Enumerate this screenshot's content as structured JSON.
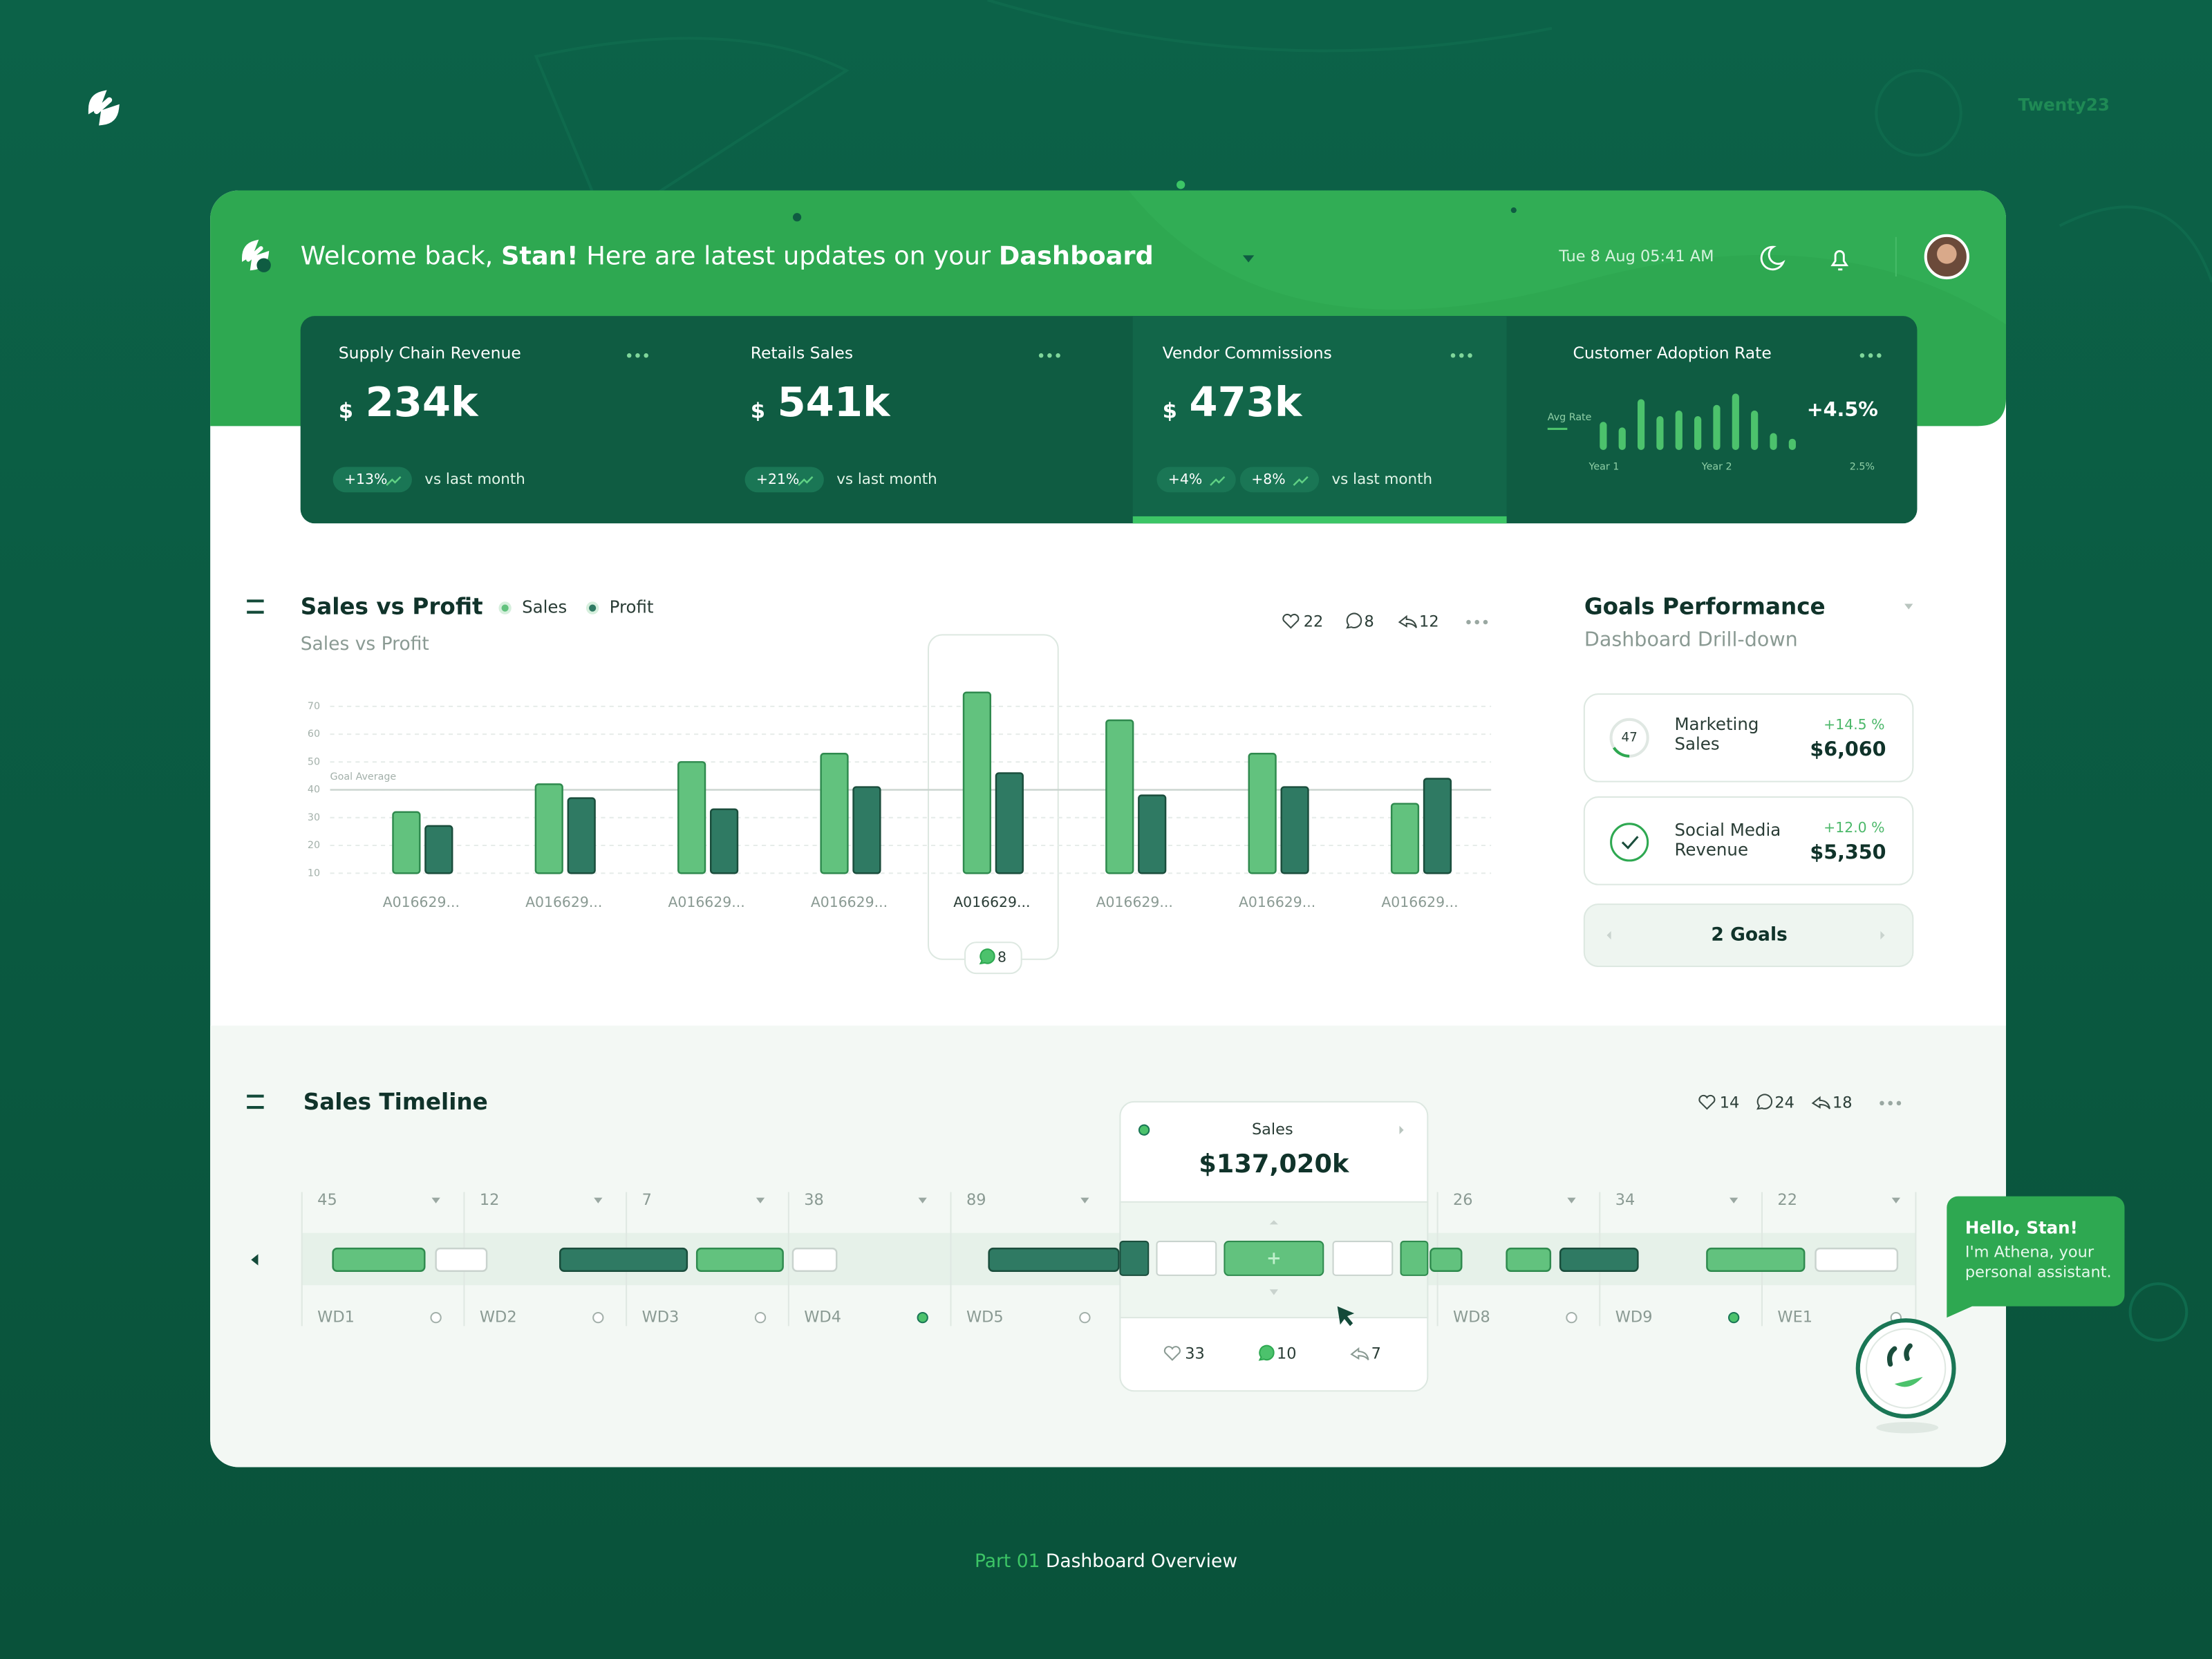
{
  "brand": "Twenty23",
  "header": {
    "welcome": [
      "Welcome back, ",
      "Stan!",
      " Here are latest updates on your ",
      "Dashboard"
    ],
    "datetime": "Tue 8 Aug 05:41 AM"
  },
  "kpis": [
    {
      "title": "Supply Chain Revenue",
      "currency": "$",
      "value": "234k",
      "badges": [
        "+13%"
      ],
      "note": "vs last month"
    },
    {
      "title": "Retails Sales",
      "currency": "$",
      "value": "541k",
      "badges": [
        "+21%"
      ],
      "note": "vs last month"
    },
    {
      "title": "Vendor Commissions",
      "currency": "$",
      "value": "473k",
      "badges": [
        "+4%",
        "+8%"
      ],
      "note": "vs last month"
    }
  ],
  "adoption": {
    "title": "Customer Adoption Rate",
    "avg_label": "Avg Rate",
    "change": "+4.5%",
    "x_labels": [
      "Year 1",
      "Year 2"
    ],
    "end_label": "2.5%",
    "ylim": [
      0,
      10
    ],
    "values": [
      5,
      4,
      9,
      6,
      7,
      6,
      8,
      10,
      7,
      3,
      2
    ],
    "color": "#4cc26c"
  },
  "sales_chart": {
    "type": "bar",
    "title": "Sales vs Profit",
    "subtitle": "Sales vs Profit",
    "likes": 22,
    "comments": 8,
    "shares": 12,
    "categories": [
      "A016629...",
      "A016629...",
      "A016629...",
      "A016629...",
      "A016629...",
      "A016629...",
      "A016629...",
      "A016629..."
    ],
    "series": [
      {
        "name": "Sales",
        "color": "#62c27e",
        "values": [
          32,
          42,
          50,
          53,
          75,
          65,
          53,
          35
        ]
      },
      {
        "name": "Profit",
        "color": "#2f7a63",
        "values": [
          27,
          37,
          33,
          41,
          46,
          38,
          41,
          44
        ]
      }
    ],
    "ylim": [
      10,
      80
    ],
    "yticks": [
      10,
      20,
      30,
      40,
      50,
      60,
      70
    ],
    "goal_label": "Goal Average",
    "goal": 40,
    "highlight": 4,
    "highlight_comments": 8,
    "grid": true
  },
  "goals": {
    "title": "Goals Performance",
    "subtitle": "Dashboard Drill-down",
    "items": [
      {
        "badge": "47",
        "label": [
          "Marketing",
          "Sales"
        ],
        "change": "+14.5 %",
        "value": "$6,060"
      },
      {
        "label": [
          "Social Media",
          "Revenue"
        ],
        "change": "+12.0 %",
        "value": "$5,350"
      }
    ],
    "button": "2 Goals"
  },
  "timeline": {
    "title": "Sales Timeline",
    "likes": 14,
    "comments": 24,
    "shares": 18,
    "columns": [
      {
        "count": 45,
        "label": "WD1"
      },
      {
        "count": 12,
        "label": "WD2"
      },
      {
        "count": 7,
        "label": "WD3"
      },
      {
        "count": 38,
        "label": "WD4"
      },
      {
        "count": 89,
        "label": "WD5"
      },
      {
        "count": 26,
        "label": "WD8"
      },
      {
        "count": 34,
        "label": "WD9"
      },
      {
        "count": 22,
        "label": "WE1"
      }
    ],
    "tooltip": {
      "title": "Sales",
      "value": "$137,020k",
      "likes": 33,
      "comments": 10,
      "shares": 7
    }
  },
  "assistant": {
    "greeting": "Hello, Stan!",
    "lines": [
      "I'm Athena, your",
      "personal assistant."
    ]
  },
  "footer": [
    "Part 01",
    " Dashboard Overview"
  ]
}
